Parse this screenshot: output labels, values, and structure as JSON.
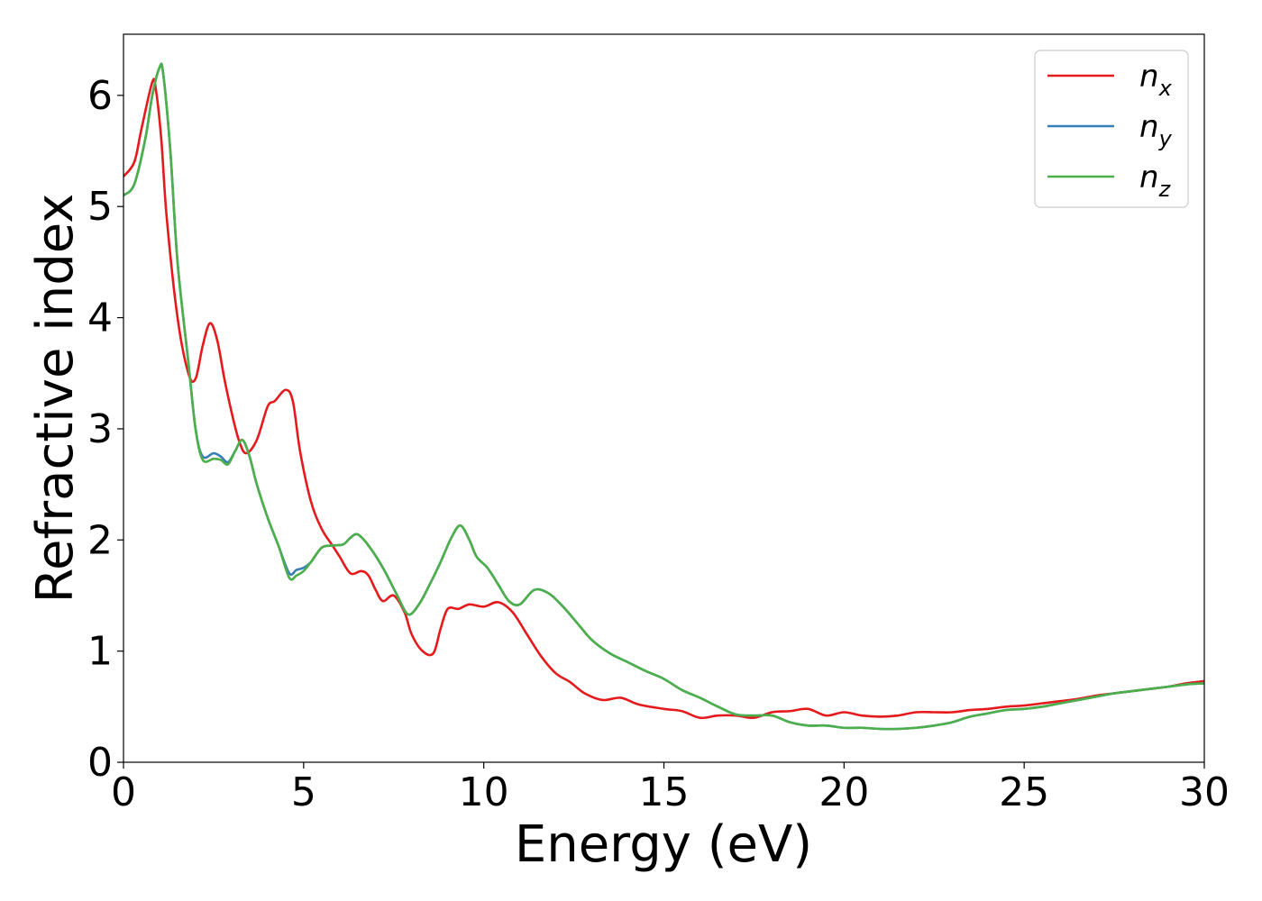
{
  "chart_data": {
    "type": "line",
    "xlabel": "Energy (eV)",
    "ylabel": "Refractive index",
    "xlim": [
      0,
      30
    ],
    "ylim": [
      0,
      6.55
    ],
    "xticks": [
      0,
      5,
      10,
      15,
      20,
      25,
      30
    ],
    "yticks": [
      0,
      1,
      2,
      3,
      4,
      5,
      6
    ],
    "grid": false,
    "legend_position": "top-right",
    "series": [
      {
        "name": "n_x",
        "label_base": "n",
        "label_sub": "x",
        "color": "#e41a1c",
        "x": [
          0,
          0.3,
          0.5,
          0.8,
          0.9,
          1.05,
          1.2,
          1.5,
          1.8,
          2.0,
          2.2,
          2.4,
          2.6,
          2.8,
          3.0,
          3.2,
          3.4,
          3.7,
          4.0,
          4.2,
          4.5,
          4.7,
          4.9,
          5.2,
          5.5,
          5.8,
          6.0,
          6.3,
          6.6,
          6.8,
          7.0,
          7.2,
          7.5,
          7.8,
          8.0,
          8.3,
          8.6,
          8.8,
          9.0,
          9.3,
          9.6,
          10.0,
          10.4,
          10.8,
          11.2,
          11.6,
          12.0,
          12.4,
          12.8,
          13.3,
          13.8,
          14.3,
          15.0,
          15.5,
          16.0,
          16.5,
          17.0,
          17.5,
          18.0,
          18.5,
          19.0,
          19.5,
          20.0,
          20.5,
          21.0,
          21.5,
          22.0,
          22.5,
          23.0,
          23.5,
          24.0,
          24.5,
          25.0,
          25.5,
          26.0,
          26.5,
          27.0,
          27.5,
          28.0,
          28.5,
          29.0,
          29.5,
          30.0
        ],
        "y": [
          5.27,
          5.4,
          5.7,
          6.12,
          6.05,
          5.6,
          4.9,
          4.0,
          3.5,
          3.45,
          3.75,
          3.95,
          3.8,
          3.45,
          3.15,
          2.9,
          2.78,
          2.9,
          3.2,
          3.25,
          3.35,
          3.25,
          2.8,
          2.35,
          2.1,
          1.95,
          1.85,
          1.7,
          1.72,
          1.68,
          1.55,
          1.45,
          1.5,
          1.35,
          1.15,
          1.0,
          0.98,
          1.2,
          1.38,
          1.38,
          1.42,
          1.4,
          1.44,
          1.35,
          1.15,
          0.95,
          0.8,
          0.72,
          0.62,
          0.56,
          0.58,
          0.52,
          0.48,
          0.46,
          0.4,
          0.42,
          0.42,
          0.4,
          0.45,
          0.46,
          0.48,
          0.42,
          0.45,
          0.42,
          0.41,
          0.42,
          0.45,
          0.45,
          0.45,
          0.47,
          0.48,
          0.5,
          0.51,
          0.53,
          0.55,
          0.57,
          0.6,
          0.62,
          0.64,
          0.66,
          0.68,
          0.71,
          0.73
        ]
      },
      {
        "name": "n_y",
        "label_base": "n",
        "label_sub": "y",
        "color": "#377eb8",
        "x": [
          0,
          0.3,
          0.6,
          0.8,
          1.0,
          1.1,
          1.3,
          1.5,
          1.8,
          2.0,
          2.2,
          2.5,
          2.7,
          2.9,
          3.1,
          3.3,
          3.5,
          3.7,
          4.0,
          4.3,
          4.6,
          4.8,
          5.0,
          5.2,
          5.5,
          5.8,
          6.1,
          6.3,
          6.5,
          6.8,
          7.2,
          7.6,
          7.9,
          8.2,
          8.5,
          8.8,
          9.1,
          9.35,
          9.6,
          9.8,
          10.1,
          10.4,
          10.7,
          11.0,
          11.4,
          11.8,
          12.2,
          12.6,
          13.0,
          13.5,
          14.0,
          14.5,
          15.0,
          15.5,
          16.0,
          16.5,
          17.0,
          17.5,
          18.0,
          18.5,
          19.0,
          19.5,
          20.0,
          20.5,
          21.0,
          21.5,
          22.0,
          22.5,
          23.0,
          23.5,
          24.0,
          24.5,
          25.0,
          25.5,
          26.0,
          26.5,
          27.0,
          27.5,
          28.0,
          28.5,
          29.0,
          29.5,
          30.0
        ],
        "y": [
          5.1,
          5.2,
          5.6,
          6.0,
          6.25,
          6.2,
          5.5,
          4.5,
          3.6,
          3.0,
          2.75,
          2.78,
          2.75,
          2.7,
          2.8,
          2.9,
          2.75,
          2.5,
          2.2,
          1.95,
          1.7,
          1.73,
          1.75,
          1.8,
          1.93,
          1.95,
          1.96,
          2.02,
          2.05,
          1.95,
          1.75,
          1.5,
          1.33,
          1.42,
          1.6,
          1.8,
          2.02,
          2.13,
          2.0,
          1.85,
          1.75,
          1.6,
          1.45,
          1.42,
          1.55,
          1.52,
          1.4,
          1.25,
          1.1,
          0.98,
          0.9,
          0.82,
          0.75,
          0.65,
          0.58,
          0.5,
          0.43,
          0.42,
          0.42,
          0.36,
          0.33,
          0.33,
          0.31,
          0.31,
          0.3,
          0.3,
          0.31,
          0.33,
          0.36,
          0.41,
          0.44,
          0.47,
          0.48,
          0.5,
          0.53,
          0.56,
          0.59,
          0.62,
          0.64,
          0.66,
          0.68,
          0.7,
          0.71
        ]
      },
      {
        "name": "n_z",
        "label_base": "n",
        "label_sub": "z",
        "color": "#4daf4a",
        "x": [
          0,
          0.3,
          0.6,
          0.8,
          1.0,
          1.1,
          1.3,
          1.5,
          1.8,
          2.0,
          2.2,
          2.5,
          2.7,
          2.9,
          3.1,
          3.3,
          3.5,
          3.7,
          4.0,
          4.3,
          4.6,
          4.8,
          5.0,
          5.2,
          5.5,
          5.8,
          6.1,
          6.3,
          6.5,
          6.8,
          7.2,
          7.6,
          7.9,
          8.2,
          8.5,
          8.8,
          9.1,
          9.35,
          9.6,
          9.8,
          10.1,
          10.4,
          10.7,
          11.0,
          11.4,
          11.8,
          12.2,
          12.6,
          13.0,
          13.5,
          14.0,
          14.5,
          15.0,
          15.5,
          16.0,
          16.5,
          17.0,
          17.5,
          18.0,
          18.5,
          19.0,
          19.5,
          20.0,
          20.5,
          21.0,
          21.5,
          22.0,
          22.5,
          23.0,
          23.5,
          24.0,
          24.5,
          25.0,
          25.5,
          26.0,
          26.5,
          27.0,
          27.5,
          28.0,
          28.5,
          29.0,
          29.5,
          30.0
        ],
        "y": [
          5.1,
          5.2,
          5.6,
          6.0,
          6.25,
          6.2,
          5.5,
          4.5,
          3.6,
          3.0,
          2.72,
          2.73,
          2.72,
          2.68,
          2.8,
          2.9,
          2.75,
          2.5,
          2.2,
          1.95,
          1.66,
          1.68,
          1.72,
          1.8,
          1.93,
          1.95,
          1.96,
          2.02,
          2.05,
          1.95,
          1.75,
          1.5,
          1.33,
          1.42,
          1.6,
          1.8,
          2.02,
          2.13,
          2.0,
          1.85,
          1.75,
          1.6,
          1.45,
          1.42,
          1.55,
          1.52,
          1.4,
          1.25,
          1.1,
          0.98,
          0.9,
          0.82,
          0.75,
          0.65,
          0.58,
          0.5,
          0.43,
          0.42,
          0.42,
          0.36,
          0.33,
          0.33,
          0.31,
          0.31,
          0.3,
          0.3,
          0.31,
          0.33,
          0.36,
          0.41,
          0.44,
          0.47,
          0.48,
          0.5,
          0.53,
          0.56,
          0.59,
          0.62,
          0.64,
          0.66,
          0.68,
          0.7,
          0.71
        ]
      }
    ]
  }
}
